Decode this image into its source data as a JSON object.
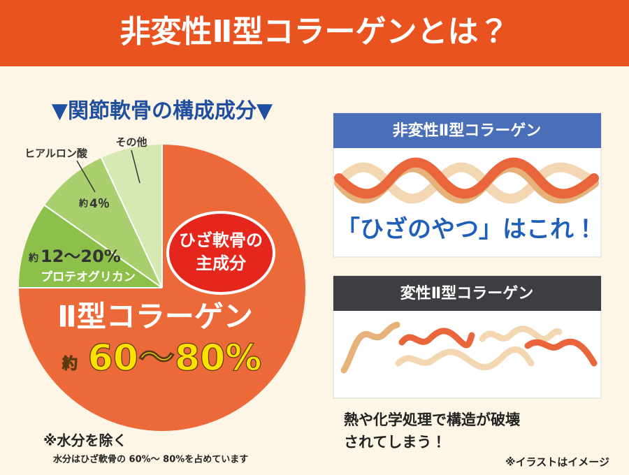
{
  "header": {
    "title": "非変性Ⅱ型コラーゲンとは？"
  },
  "pie": {
    "heading": "▼関節軟骨の構成成分▼",
    "other": {
      "label": "その他"
    },
    "hyaluronic": {
      "label": "ヒアルロン酸",
      "prefix": "約",
      "amount": "4％"
    },
    "proteoglycan": {
      "prefix": "約",
      "amount": "12～20%",
      "label": "プロテオグリカン"
    },
    "collagen": {
      "badge_line1": "ひざ軟骨の",
      "badge_line2": "主成分",
      "label": "Ⅱ型コラーゲン",
      "prefix": "約",
      "amount": "60～80%"
    },
    "note": "※水分を除く",
    "subnote": "水分はひざ軟骨の 60%～ 80%を占めています"
  },
  "panels": [
    {
      "title": "非変性Ⅱ型コラーゲン",
      "caption": "「ひざのやつ」はこれ！"
    },
    {
      "title": "変性Ⅱ型コラーゲン",
      "caption_line1": "熱や化学処理で構造が破壊",
      "caption_line2": "されてしまう！"
    }
  ],
  "footnote": "※イラストはイメージ"
}
